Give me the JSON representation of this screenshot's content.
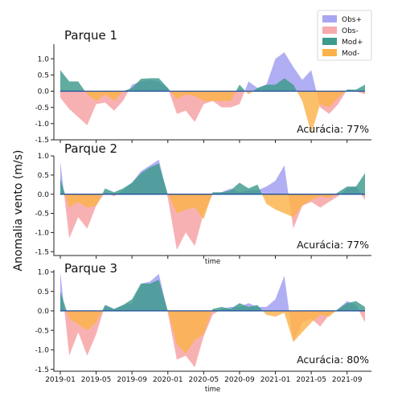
{
  "chart_data": {
    "type": "area",
    "ylabel": "Anomalia vento (m/s)",
    "xlabel": "time",
    "x_start": "2019-01",
    "x_end": "2021-11",
    "x_ticks": [
      "2019-01",
      "2019-05",
      "2019-09",
      "2020-01",
      "2020-05",
      "2020-09",
      "2021-01",
      "2021-05",
      "2021-09"
    ],
    "legend": {
      "position": "top-right",
      "entries": [
        {
          "label": "Obs+",
          "color": "#a8a6f2"
        },
        {
          "label": "Obs-",
          "color": "#f7a9ab"
        },
        {
          "label": "Mod+",
          "color": "#3d9a8c"
        },
        {
          "label": "Mod-",
          "color": "#fbb24a"
        }
      ]
    },
    "colors": {
      "obs_pos": "#a8a6f2",
      "obs_neg": "#f7a9ab",
      "mod_pos": "#3d9a8c",
      "mod_neg": "#fbb24a",
      "axis": "#222222",
      "zero_line": "#1f4e9a"
    },
    "panels": [
      {
        "title": "Parque 1",
        "accuracy_label": "Acurácia: 77%",
        "ylim": [
          -1.5,
          1.45
        ],
        "yticks": [
          "1.0",
          "0.5",
          "0.0",
          "-0.5",
          "-1.0",
          "-1.5"
        ],
        "show_xticks": false,
        "show_xlabel": false,
        "observed": [
          -0.2,
          -0.55,
          -0.8,
          -1.05,
          -0.4,
          -0.35,
          -0.6,
          -0.3,
          0.2,
          0.3,
          0.35,
          0.3,
          0.1,
          -0.7,
          -0.6,
          -0.95,
          -0.4,
          -0.3,
          -0.5,
          -0.5,
          -0.4,
          0.3,
          0.1,
          0.2,
          1.0,
          1.2,
          0.75,
          0.35,
          0.65,
          -0.5,
          -0.7,
          -0.4,
          0.05,
          0.0,
          -0.1
        ],
        "model": [
          0.65,
          0.3,
          0.3,
          -0.1,
          -0.3,
          -0.1,
          -0.3,
          0.0,
          0.1,
          0.38,
          0.4,
          0.4,
          0.1,
          -0.25,
          -0.1,
          -0.15,
          -0.3,
          -0.3,
          -0.3,
          -0.3,
          0.2,
          -0.1,
          0.1,
          0.2,
          0.2,
          0.4,
          0.2,
          -0.3,
          -1.3,
          -0.4,
          -0.5,
          -0.2,
          0.05,
          0.05,
          0.2
        ]
      },
      {
        "title": "Parque 2",
        "accuracy_label": "Acurácia: 77%",
        "ylim": [
          -1.6,
          1.0
        ],
        "yticks": [
          "1.0",
          "0.5",
          "0.0",
          "-0.5",
          "-1.0",
          "-1.5"
        ],
        "show_xticks": false,
        "show_xlabel": true,
        "observed": [
          0.85,
          -1.15,
          -0.6,
          -0.9,
          -0.3,
          0.05,
          -0.05,
          0.1,
          0.3,
          0.6,
          0.75,
          0.9,
          -0.1,
          -1.45,
          -1.0,
          -1.35,
          -0.5,
          0.0,
          0.05,
          0.15,
          0.05,
          0.1,
          0.1,
          0.2,
          0.35,
          0.75,
          -0.9,
          -0.3,
          -0.2,
          -0.35,
          -0.2,
          -0.05,
          0.15,
          0.2,
          -0.15
        ],
        "model": [
          0.4,
          -0.35,
          -0.2,
          -0.35,
          -0.3,
          0.15,
          0.05,
          0.15,
          0.3,
          0.55,
          0.7,
          0.8,
          0.0,
          -0.5,
          -0.4,
          -0.35,
          -0.65,
          0.05,
          0.05,
          0.1,
          0.3,
          0.15,
          0.25,
          -0.25,
          -0.4,
          -0.5,
          -0.6,
          -0.3,
          -0.15,
          -0.05,
          -0.1,
          0.05,
          0.2,
          0.2,
          0.55
        ]
      },
      {
        "title": "Parque 3",
        "accuracy_label": "Acurácia: 80%",
        "ylim": [
          -1.55,
          1.05
        ],
        "yticks": [
          "1.0",
          "0.5",
          "0.0",
          "-0.5",
          "-1.0",
          "-1.5"
        ],
        "show_xticks": true,
        "show_xlabel": true,
        "observed": [
          1.0,
          -1.15,
          -0.55,
          -1.15,
          -0.6,
          0.15,
          0.05,
          0.15,
          0.2,
          0.7,
          0.75,
          0.95,
          -0.05,
          -1.25,
          -1.15,
          -1.45,
          -0.65,
          -0.1,
          0.05,
          0.1,
          0.1,
          0.2,
          0.1,
          0.1,
          0.3,
          0.9,
          -0.8,
          -0.3,
          -0.2,
          -0.4,
          -0.1,
          0.05,
          0.25,
          0.15,
          -0.3
        ],
        "model": [
          0.5,
          -0.2,
          -0.35,
          -0.5,
          -0.3,
          0.15,
          0.05,
          0.15,
          0.3,
          0.7,
          0.7,
          0.8,
          0.0,
          -0.85,
          -1.1,
          -0.75,
          -0.6,
          0.05,
          0.1,
          0.05,
          0.2,
          0.1,
          0.15,
          -0.1,
          -0.15,
          -0.05,
          -0.8,
          -0.55,
          -0.3,
          -0.1,
          -0.15,
          0.05,
          0.2,
          0.25,
          0.1
        ]
      }
    ]
  }
}
